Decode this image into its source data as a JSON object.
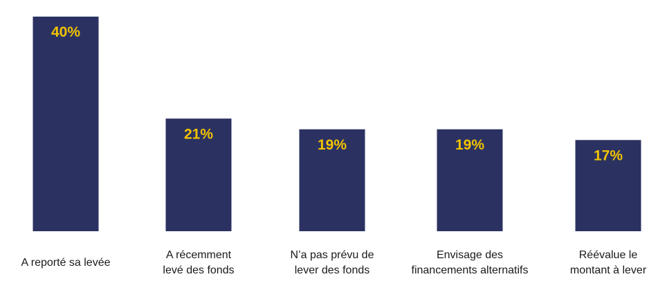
{
  "chart_data": {
    "type": "bar",
    "categories": [
      [
        "A reporté sa levée"
      ],
      [
        "A récemment",
        "levé des fonds"
      ],
      [
        "N’a pas prévu de",
        "lever des fonds"
      ],
      [
        "Envisage des",
        "financements alternatifs"
      ],
      [
        "Réévalue le",
        "montant à lever"
      ]
    ],
    "values": [
      40,
      21,
      19,
      19,
      17
    ],
    "value_labels": [
      "40%",
      "21%",
      "19%",
      "19%",
      "17%"
    ],
    "unit": "%",
    "ylim": [
      0,
      40
    ],
    "grid": false,
    "legend": "none",
    "colors": {
      "bar": "#2b3262",
      "value_label": "#f2c300",
      "category_label": "#1a1a1a",
      "background": "#ffffff"
    }
  }
}
